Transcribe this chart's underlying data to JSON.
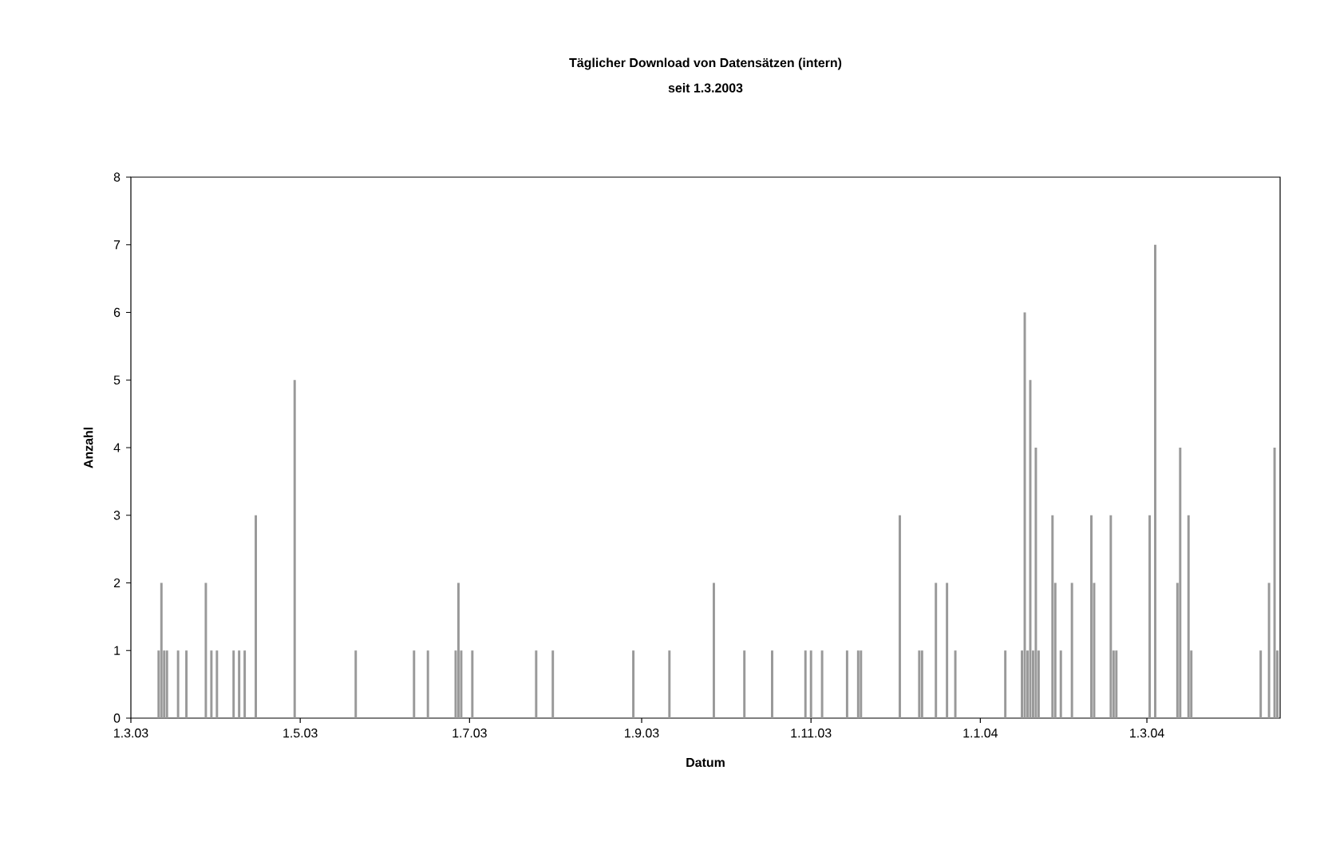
{
  "chart_data": {
    "type": "bar",
    "title": "Täglicher Download von Datensätzen (intern)",
    "subtitle": "seit 1.3.2003",
    "xlabel": "Datum",
    "ylabel": "Anzahl",
    "x": [
      "2003-03-11",
      "2003-03-12",
      "2003-03-13",
      "2003-03-14",
      "2003-03-18",
      "2003-03-21",
      "2003-03-28",
      "2003-03-30",
      "2003-04-01",
      "2003-04-07",
      "2003-04-09",
      "2003-04-11",
      "2003-04-15",
      "2003-04-29",
      "2003-05-21",
      "2003-06-11",
      "2003-06-16",
      "2003-06-26",
      "2003-06-27",
      "2003-06-28",
      "2003-07-02",
      "2003-07-25",
      "2003-07-31",
      "2003-08-29",
      "2003-09-11",
      "2003-09-27",
      "2003-10-08",
      "2003-10-18",
      "2003-10-30",
      "2003-11-01",
      "2003-11-05",
      "2003-11-14",
      "2003-11-18",
      "2003-11-19",
      "2003-12-03",
      "2003-12-10",
      "2003-12-11",
      "2003-12-16",
      "2003-12-20",
      "2003-12-23",
      "2004-01-10",
      "2004-01-16",
      "2004-01-17",
      "2004-01-18",
      "2004-01-19",
      "2004-01-20",
      "2004-01-21",
      "2004-01-22",
      "2004-01-27",
      "2004-01-28",
      "2004-01-30",
      "2004-02-03",
      "2004-02-10",
      "2004-02-11",
      "2004-02-17",
      "2004-02-18",
      "2004-02-19",
      "2004-03-02",
      "2004-03-04",
      "2004-03-12",
      "2004-03-13",
      "2004-03-16",
      "2004-03-17",
      "2004-04-11",
      "2004-04-14",
      "2004-04-16",
      "2004-04-17"
    ],
    "values": [
      1,
      2,
      1,
      1,
      1,
      1,
      2,
      1,
      1,
      1,
      1,
      1,
      3,
      5,
      1,
      1,
      1,
      1,
      2,
      1,
      1,
      1,
      1,
      1,
      1,
      2,
      1,
      1,
      1,
      1,
      1,
      1,
      1,
      1,
      3,
      1,
      1,
      2,
      2,
      1,
      1,
      1,
      6,
      1,
      5,
      1,
      4,
      1,
      3,
      2,
      1,
      2,
      3,
      2,
      3,
      1,
      1,
      3,
      7,
      2,
      4,
      3,
      1,
      1,
      2,
      4,
      1
    ],
    "color": "#999999",
    "xlim": [
      "2003-03-01",
      "2004-04-18"
    ],
    "xticks": [
      {
        "value": "2003-03-01",
        "label": "1.3.03"
      },
      {
        "value": "2003-05-01",
        "label": "1.5.03"
      },
      {
        "value": "2003-07-01",
        "label": "1.7.03"
      },
      {
        "value": "2003-09-01",
        "label": "1.9.03"
      },
      {
        "value": "2003-11-01",
        "label": "1.11.03"
      },
      {
        "value": "2004-01-01",
        "label": "1.1.04"
      },
      {
        "value": "2004-03-01",
        "label": "1.3.04"
      }
    ],
    "ylim": [
      0,
      8
    ],
    "yticks": [
      0,
      1,
      2,
      3,
      4,
      5,
      6,
      7,
      8
    ]
  }
}
